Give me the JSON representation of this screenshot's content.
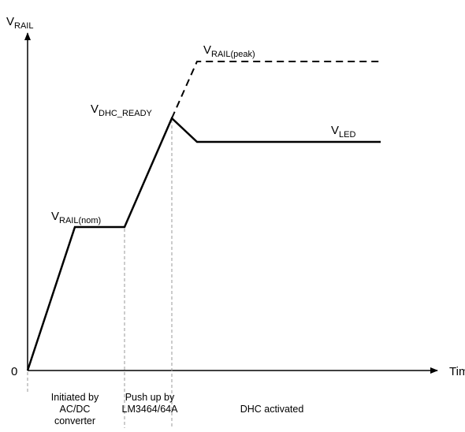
{
  "axes": {
    "y_label": {
      "main": "V",
      "sub": "RAIL"
    },
    "origin": "0",
    "x_label": "Time"
  },
  "levels": [
    {
      "main": "V",
      "sub": "RAIL(nom)"
    },
    {
      "main": "V",
      "sub": "DHC_READY"
    },
    {
      "main": "V",
      "sub": "RAIL(peak)"
    },
    {
      "main": "V",
      "sub": "LED"
    }
  ],
  "phases": [
    {
      "lines": [
        "Initiated by",
        "AC/DC",
        "converter"
      ]
    },
    {
      "lines": [
        "Push up by",
        "LM3464/64A"
      ]
    },
    {
      "lines": [
        "DHC activated"
      ]
    }
  ]
}
